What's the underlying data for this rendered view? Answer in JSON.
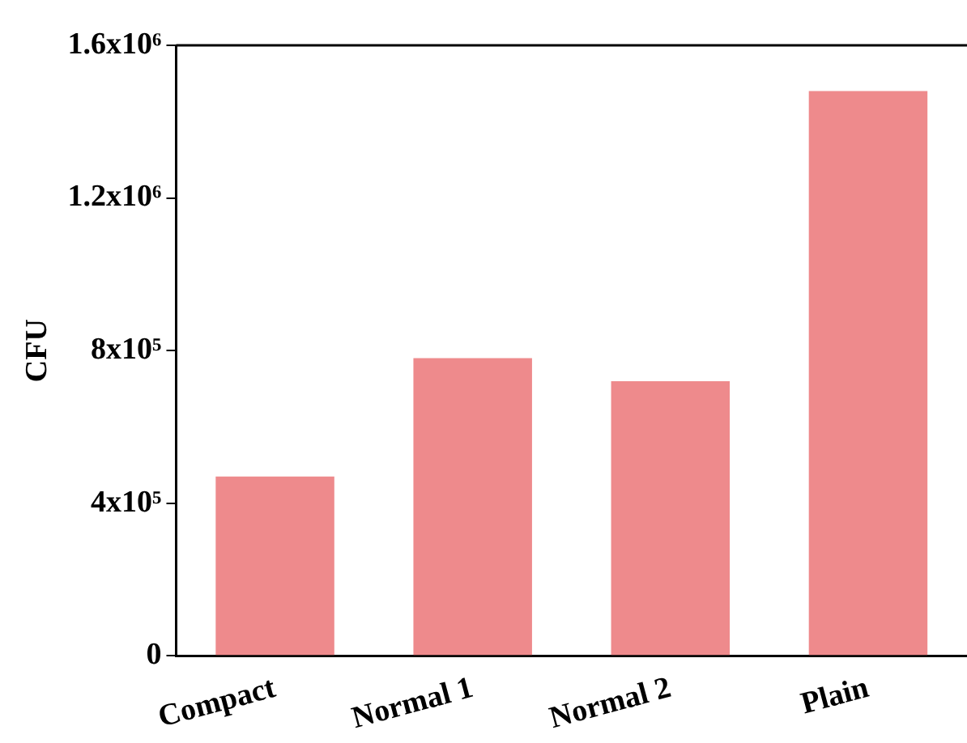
{
  "chart_data": {
    "type": "bar",
    "ylabel": "CFU",
    "categories": [
      "Compact",
      "Normal 1",
      "Normal 2",
      "Plain"
    ],
    "values": [
      470000,
      780000,
      720000,
      1480000
    ],
    "color": "#ee8a8c",
    "ylim": [
      0,
      1600000
    ],
    "yticks": [
      0,
      {
        "value": 400000,
        "label": "4x10⁵"
      },
      {
        "value": 800000,
        "label": "8x10⁵"
      },
      {
        "value": 1200000,
        "label": "1.2x10⁶"
      },
      {
        "value": 1600000,
        "label": "1.6x10⁶"
      }
    ],
    "grid": false,
    "legend": false
  }
}
